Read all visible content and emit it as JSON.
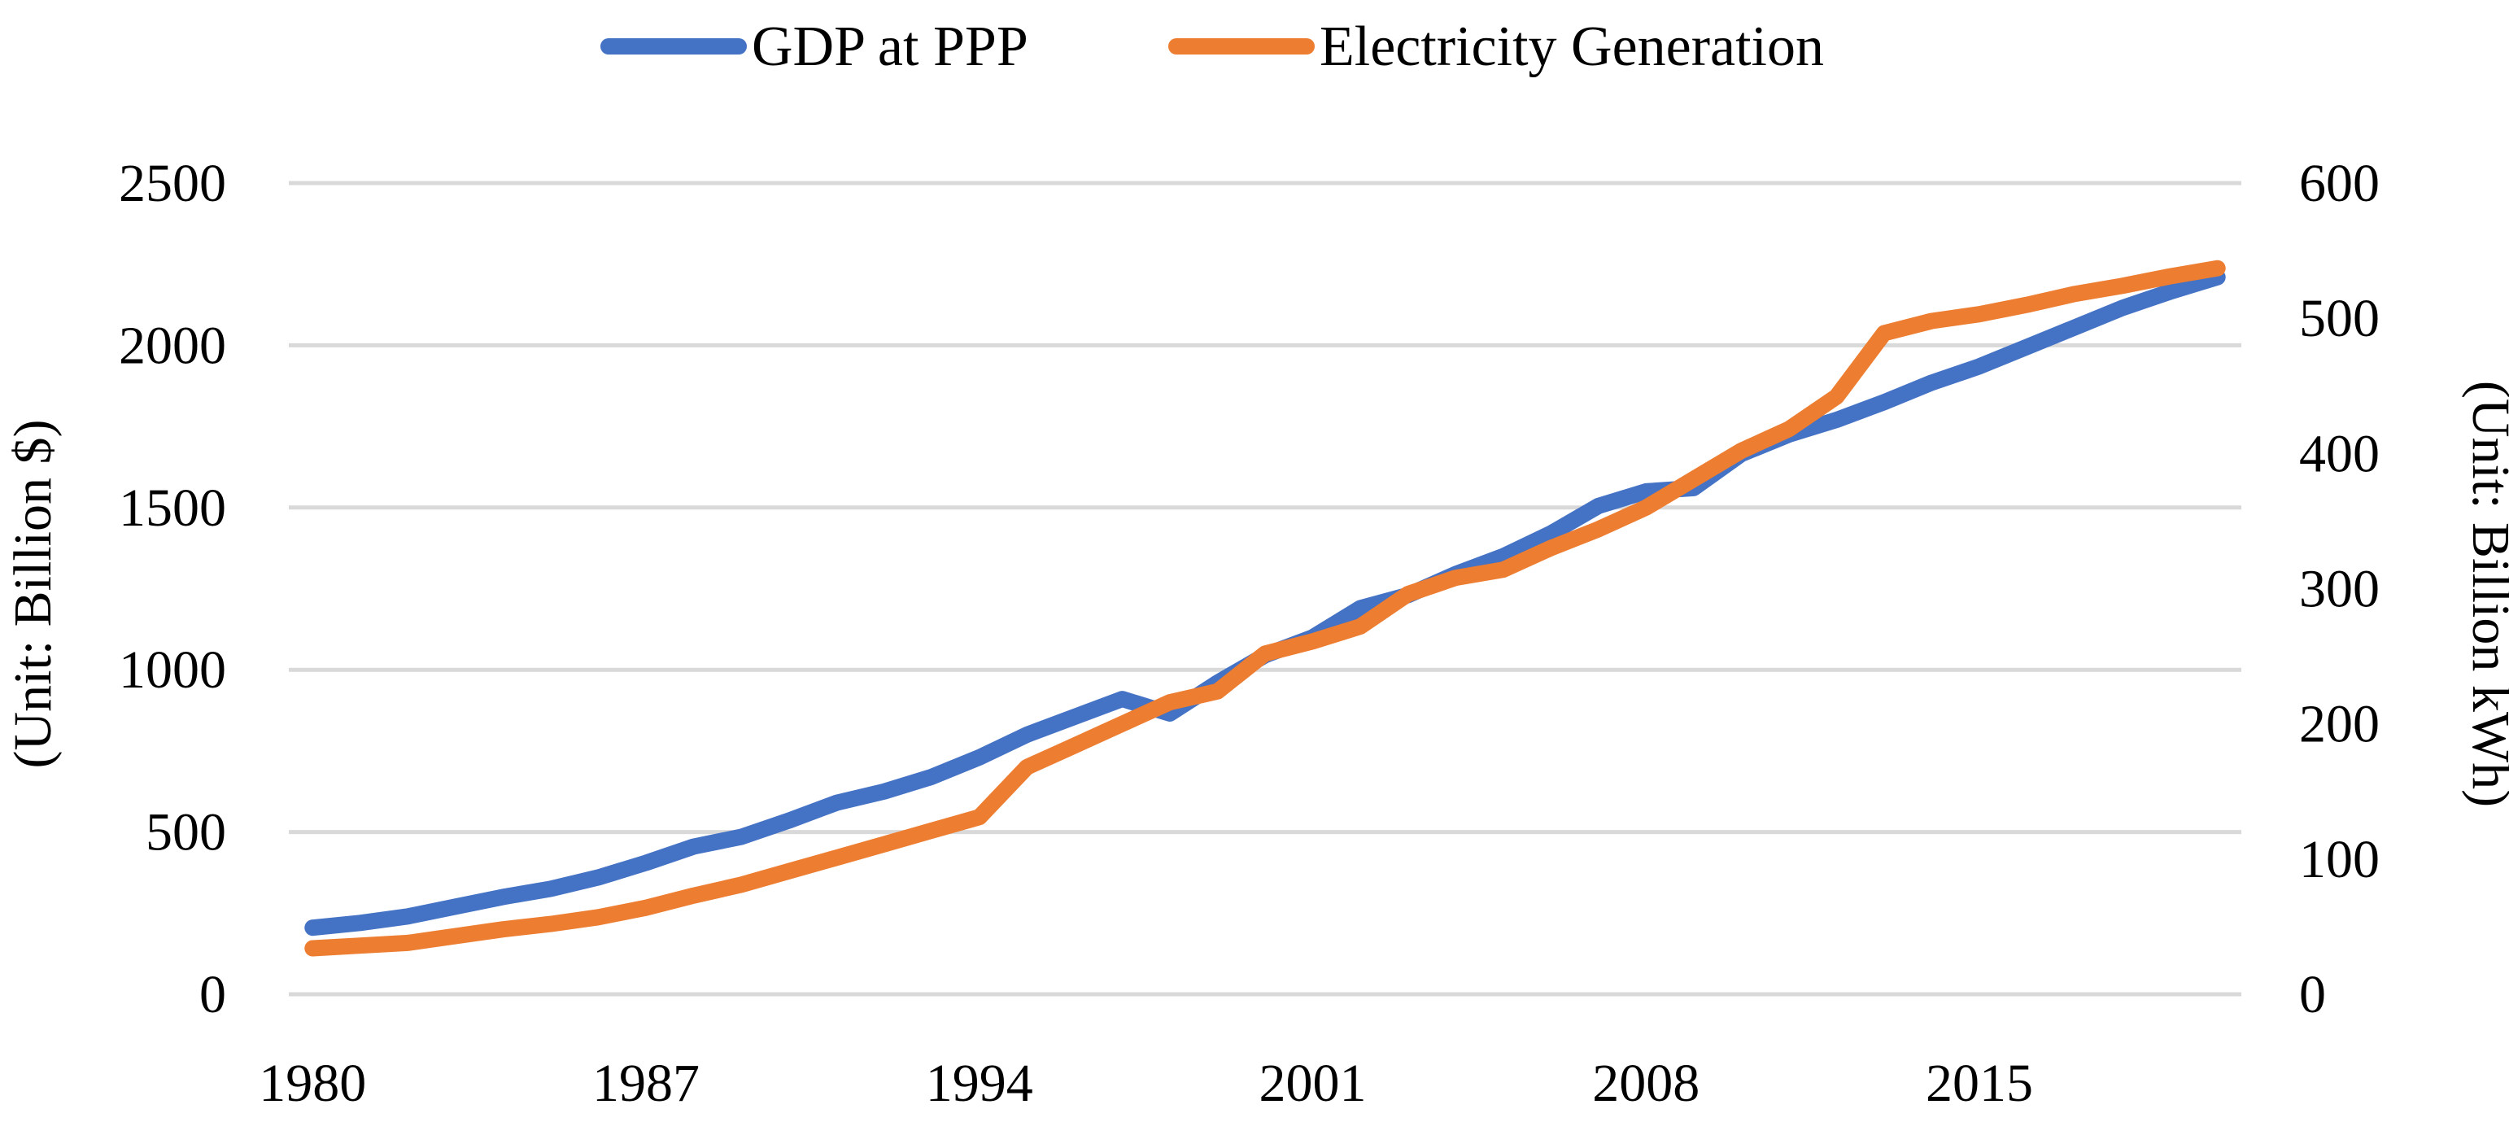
{
  "chart_data": {
    "type": "line",
    "title": "",
    "x": [
      1980,
      1981,
      1982,
      1983,
      1984,
      1985,
      1986,
      1987,
      1988,
      1989,
      1990,
      1991,
      1992,
      1993,
      1994,
      1995,
      1996,
      1997,
      1998,
      1999,
      2000,
      2001,
      2002,
      2003,
      2004,
      2005,
      2006,
      2007,
      2008,
      2009,
      2010,
      2011,
      2012,
      2013,
      2014,
      2015,
      2016,
      2017,
      2018,
      2019,
      2020
    ],
    "xticks": [
      "1980",
      "1987",
      "1994",
      "2001",
      "2008",
      "2015"
    ],
    "xtick_values": [
      1980,
      1987,
      1994,
      2001,
      2008,
      2015
    ],
    "xlim": [
      1979.5,
      2020.5
    ],
    "ylabel": "(Unit: Billion $)",
    "ylim": [
      0,
      2500
    ],
    "yticks": [
      "0",
      "500",
      "1000",
      "1500",
      "2000",
      "2500"
    ],
    "ytick_values": [
      0,
      500,
      1000,
      1500,
      2000,
      2500
    ],
    "y2label": "(Unit: Billion kWh)",
    "y2lim": [
      0,
      600
    ],
    "y2ticks": [
      "0",
      "100",
      "200",
      "300",
      "400",
      "500",
      "600"
    ],
    "y2tick_values": [
      0,
      100,
      200,
      300,
      400,
      500,
      600
    ],
    "grid": true,
    "legend_position": "top",
    "series": [
      {
        "name": "GDP at PPP",
        "axis": "left",
        "color": "#4472c4",
        "values": [
          205,
          220,
          240,
          270,
          300,
          325,
          360,
          405,
          455,
          485,
          535,
          590,
          625,
          670,
          730,
          800,
          855,
          910,
          865,
          960,
          1045,
          1100,
          1190,
          1230,
          1295,
          1350,
          1420,
          1505,
          1550,
          1560,
          1665,
          1725,
          1770,
          1825,
          1885,
          1935,
          1995,
          2055,
          2115,
          2165,
          2210
        ]
      },
      {
        "name": "Electricity Generation",
        "axis": "right",
        "color": "#ed7d31",
        "values": [
          34,
          36,
          38,
          43,
          48,
          52,
          57,
          64,
          73,
          81,
          91,
          101,
          111,
          121,
          131,
          168,
          184,
          200,
          216,
          224,
          252,
          261,
          272,
          296,
          308,
          314,
          330,
          344,
          360,
          381,
          402,
          418,
          442,
          489,
          498,
          503,
          510,
          518,
          524,
          531,
          537
        ]
      }
    ]
  }
}
